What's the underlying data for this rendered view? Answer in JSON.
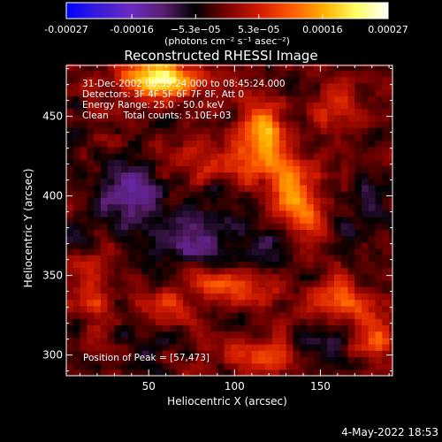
{
  "chart_data": {
    "type": "heatmap",
    "title": "Reconstructed RHESSI Image",
    "xlabel": "Heliocentric X (arcsec)",
    "ylabel": "Heliocentric Y (arcsec)",
    "xlim": [
      2,
      192
    ],
    "ylim": [
      287,
      482
    ],
    "x_ticks": [
      50,
      100,
      150
    ],
    "y_ticks": [
      300,
      350,
      400,
      450
    ],
    "info_lines": [
      "31-Dec-2002 08:39:24.000 to 08:45:24.000",
      "Detectors: 3F 4F 5F 6F 7F 8F, Att 0",
      "Energy Range: 25.0 - 50.0 keV",
      "Clean     Total counts: 5.10E+03"
    ],
    "peak_label": "Position of Peak = [57,473]",
    "peak": [
      57,
      473
    ],
    "colorbar": {
      "range": [
        -0.00027,
        0.00027
      ],
      "tick_values": [
        -0.00027,
        -0.00016,
        -5.3e-05,
        5.3e-05,
        0.00016,
        0.00027
      ],
      "tick_labels": [
        "-0.00027",
        "-0.00016",
        "−5.3e−05",
        "5.3e−05",
        "0.00016",
        "0.00027"
      ],
      "unit": "(photons cm⁻² s⁻¹ asec⁻²)",
      "stops": [
        "#0000ff",
        "#3a1cd8",
        "#6a2bc0",
        "#5a1e70",
        "#000000",
        "#7a0000",
        "#d01a00",
        "#ff5a00",
        "#ffae00",
        "#ffff60",
        "#ffffff"
      ]
    },
    "grid": false,
    "legend": "none",
    "pixel_size_arcsec": 4,
    "field": {
      "base": -2e-05,
      "sources": [
        {
          "x": 57,
          "y": 473,
          "amp": 0.00027,
          "sx": 14,
          "sy": 8
        },
        {
          "x": 115,
          "y": 437,
          "amp": 0.00018,
          "sx": 10,
          "sy": 14
        },
        {
          "x": 132,
          "y": 408,
          "amp": 0.00015,
          "sx": 9,
          "sy": 14
        },
        {
          "x": 142,
          "y": 385,
          "amp": 0.00012,
          "sx": 8,
          "sy": 11
        },
        {
          "x": 88,
          "y": 420,
          "amp": 0.0001,
          "sx": 16,
          "sy": 8
        },
        {
          "x": 158,
          "y": 455,
          "amp": 9e-05,
          "sx": 10,
          "sy": 10
        },
        {
          "x": 100,
          "y": 345,
          "amp": 0.00013,
          "sx": 20,
          "sy": 8
        },
        {
          "x": 160,
          "y": 335,
          "amp": 0.00011,
          "sx": 12,
          "sy": 10
        },
        {
          "x": 182,
          "y": 312,
          "amp": 0.00012,
          "sx": 8,
          "sy": 10
        },
        {
          "x": 15,
          "y": 340,
          "amp": 9e-05,
          "sx": 8,
          "sy": 14
        },
        {
          "x": 120,
          "y": 300,
          "amp": 9e-05,
          "sx": 18,
          "sy": 8
        },
        {
          "x": 60,
          "y": 330,
          "amp": 7e-05,
          "sx": 10,
          "sy": 8
        },
        {
          "x": 40,
          "y": 400,
          "amp": -0.00012,
          "sx": 14,
          "sy": 14
        },
        {
          "x": 75,
          "y": 372,
          "amp": -8e-05,
          "sx": 18,
          "sy": 12
        },
        {
          "x": 115,
          "y": 365,
          "amp": -7e-05,
          "sx": 14,
          "sy": 10
        },
        {
          "x": 180,
          "y": 392,
          "amp": -6e-05,
          "sx": 10,
          "sy": 14
        },
        {
          "x": 150,
          "y": 305,
          "amp": -7e-05,
          "sx": 12,
          "sy": 10
        }
      ],
      "noise_amp": 6e-05
    }
  },
  "footer": {
    "date": "4-May-2022 18:53"
  }
}
